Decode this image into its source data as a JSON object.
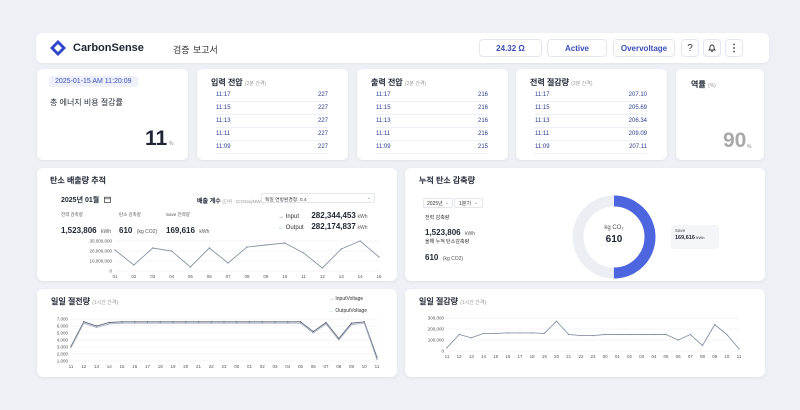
{
  "header": {
    "brand": "CarbonSense",
    "nav": [
      "검증",
      "보고서"
    ],
    "pill1": "24.32 Ω",
    "pill2": "Active",
    "pill3": "Overvoltage"
  },
  "savings": {
    "date": "2025-01-15 AM 11:20:09",
    "title": "총 에너지 비용 절감률",
    "value": "11",
    "unit": "%"
  },
  "input": {
    "title": "입력 전압",
    "sub": "(2분 간격)",
    "rows": [
      [
        "11:17",
        "227"
      ],
      [
        "11:15",
        "227"
      ],
      [
        "11:13",
        "227"
      ],
      [
        "11:11",
        "227"
      ],
      [
        "11:09",
        "227"
      ]
    ]
  },
  "output": {
    "title": "출력 전압",
    "sub": "(2분 간격)",
    "rows": [
      [
        "11:17",
        "216"
      ],
      [
        "11:15",
        "216"
      ],
      [
        "11:13",
        "216"
      ],
      [
        "11:11",
        "216"
      ],
      [
        "11:09",
        "215"
      ]
    ]
  },
  "power": {
    "title": "전력 절감량",
    "sub": "(2분 간격)",
    "rows": [
      [
        "11:17",
        "207.10"
      ],
      [
        "11:15",
        "205.69"
      ],
      [
        "11:13",
        "206.34"
      ],
      [
        "11:11",
        "209.09"
      ],
      [
        "11:09",
        "207.11"
      ]
    ]
  },
  "pf": {
    "title": "역률",
    "sub": "(%)",
    "value": "90",
    "unit": "%"
  },
  "trend": {
    "title": "탄소 배출량 추적",
    "month": "2025년 01월",
    "factor_label": "배출 계수",
    "factor_unit": "(단위 : tCO2eq/MWh)",
    "factor_value": "독일 연방환경청, 0.4",
    "stats": [
      {
        "label": "전력 감축량",
        "value": "1,523,806",
        "unit": "kWh"
      },
      {
        "label": "탄소 감축량",
        "value": "610",
        "unit": "(kg CO2)"
      },
      {
        "label": "Save 전력량",
        "value": "169,616",
        "unit": "kWh"
      }
    ],
    "io": [
      {
        "label": "Input",
        "value": "282,344,453",
        "unit": "kWh"
      },
      {
        "label": "Output",
        "value": "282,174,837",
        "unit": "kWh"
      }
    ]
  },
  "cumul": {
    "title": "누적 탄소 감축량",
    "year": "2025년",
    "quarter": "1분기",
    "stat1_label": "전력 감축량",
    "stat1_value": "1,523,806",
    "stat1_unit": "kWh",
    "stat2_label": "올해 누적 탄소감축량",
    "stat2_value": "610",
    "stat2_unit": "(kg CO2)",
    "donut_unit": "kg CO₂",
    "donut_value": "610",
    "save_label": "Save",
    "save_value": "169,616",
    "save_unit": "kWh"
  },
  "daily_power": {
    "title": "일일 절전량",
    "sub": "(1시간 간격)"
  },
  "daily_saving": {
    "title": "일일 절감량",
    "sub": "(1시간 간격)"
  },
  "chart_data": [
    {
      "type": "line",
      "categories": [
        "01",
        "02",
        "03",
        "04",
        "05",
        "06",
        "07",
        "08",
        "09",
        "10",
        "11",
        "12",
        "13",
        "14",
        "15"
      ],
      "values": [
        21000000,
        6000000,
        23000000,
        20000000,
        4000000,
        23000000,
        8000000,
        24000000,
        26000000,
        28000000,
        18000000,
        3000000,
        22000000,
        30000000,
        14000000
      ],
      "yticks": [
        "30,000,000",
        "20,000,000",
        "10,000,000",
        "0"
      ],
      "ylim": [
        0,
        30000000
      ]
    },
    {
      "type": "line",
      "categories": [
        "11",
        "12",
        "13",
        "14",
        "15",
        "16",
        "17",
        "18",
        "19",
        "20",
        "21",
        "22",
        "23",
        "00",
        "01",
        "02",
        "03",
        "04",
        "05",
        "06",
        "07",
        "08",
        "09",
        "10",
        "11"
      ],
      "series": [
        {
          "name": "InputVoltage",
          "values": [
            3100,
            6600,
            6000,
            6500,
            6600,
            6600,
            6600,
            6600,
            6600,
            6600,
            6600,
            6600,
            6600,
            6600,
            6600,
            6600,
            6600,
            6600,
            6600,
            5200,
            6500,
            4200,
            6400,
            6600,
            1500
          ]
        },
        {
          "name": "OutputVoltage",
          "values": [
            2900,
            6400,
            5800,
            6300,
            6400,
            6400,
            6400,
            6400,
            6400,
            6400,
            6400,
            6400,
            6400,
            6400,
            6400,
            6400,
            6400,
            6400,
            6400,
            5000,
            6300,
            4000,
            6200,
            6400,
            1200
          ]
        }
      ],
      "yticks": [
        "7,000",
        "6,000",
        "5,000",
        "4,000",
        "3,000",
        "2,000",
        "1,000"
      ],
      "ylim": [
        1000,
        7000
      ]
    },
    {
      "type": "line",
      "categories": [
        "11",
        "12",
        "13",
        "14",
        "15",
        "16",
        "17",
        "18",
        "19",
        "20",
        "21",
        "22",
        "23",
        "00",
        "01",
        "02",
        "03",
        "04",
        "05",
        "06",
        "07",
        "08",
        "09",
        "10",
        "11"
      ],
      "values": [
        30000,
        150000,
        120000,
        160000,
        160000,
        165000,
        165000,
        165000,
        160000,
        270000,
        150000,
        140000,
        140000,
        150000,
        150000,
        150000,
        150000,
        150000,
        150000,
        100000,
        150000,
        50000,
        240000,
        150000,
        20000
      ],
      "yticks": [
        "300,000",
        "200,000",
        "100,000",
        "0"
      ],
      "ylim": [
        0,
        300000
      ]
    }
  ]
}
